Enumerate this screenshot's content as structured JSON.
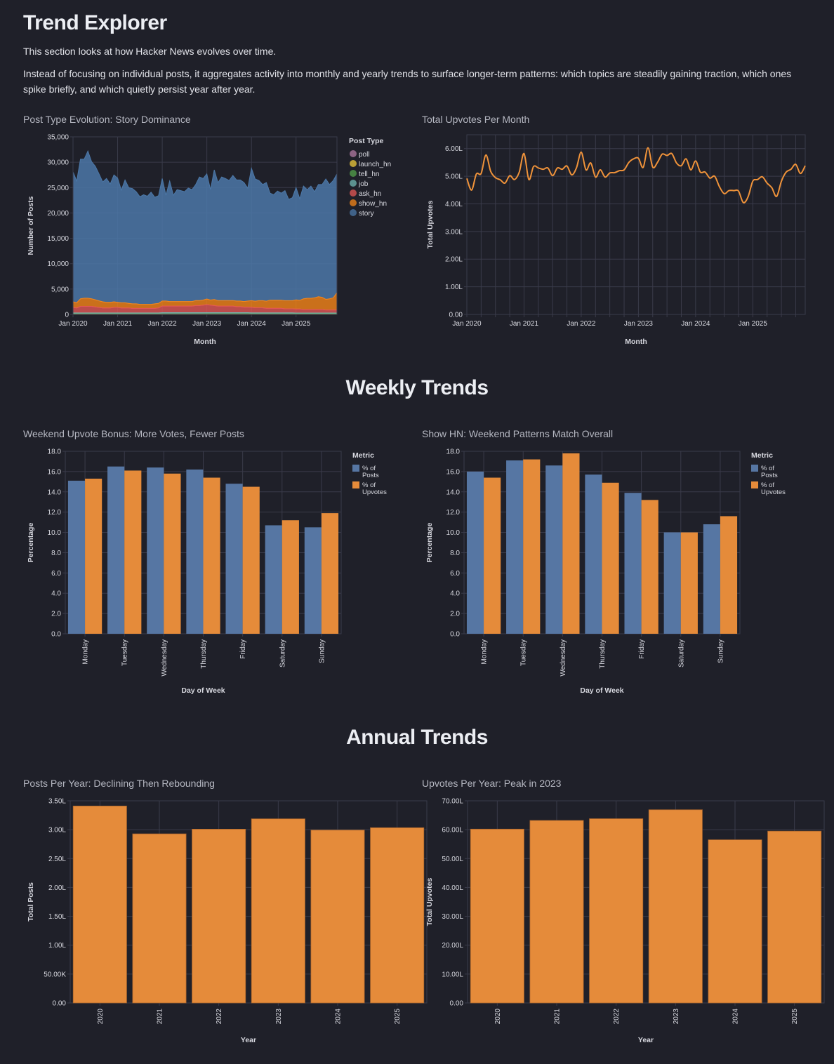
{
  "page": {
    "title": "Trend Explorer",
    "intro_1": "This section looks at how Hacker News evolves over time.",
    "intro_2": "Instead of focusing on individual posts, it aggregates activity into monthly and yearly trends to surface longer-term patterns: which topics are steadily gaining traction, which ones spike briefly, and which quietly persist year after year.",
    "section_weekly": "Weekly Trends",
    "section_annual": "Annual Trends"
  },
  "colors": {
    "background": "#1f2029",
    "grid": "#3a3b4a",
    "blue": "#5676a3",
    "orange": "#e58b3a",
    "line_orange": "#f0933a"
  },
  "chart_data": [
    {
      "id": "post_type_evolution",
      "type": "area",
      "stacked": true,
      "title": "Post Type Evolution: Story Dominance",
      "xlabel": "Month",
      "ylabel": "Number of Posts",
      "ylim": [
        0,
        35000
      ],
      "yticks": [
        "0",
        "5,000",
        "10,000",
        "15,000",
        "20,000",
        "25,000",
        "30,000",
        "35,000"
      ],
      "ytick_values": [
        0,
        5000,
        10000,
        15000,
        20000,
        25000,
        30000,
        35000
      ],
      "xticks": [
        "Jan 2020",
        "Jan 2021",
        "Jan 2022",
        "Jan 2023",
        "Jan 2024",
        "Jan 2025"
      ],
      "x_start": "2020-01",
      "months": 72,
      "legend_title": "Post Type",
      "legend_position": "right",
      "grid": true,
      "totals": [
        28100,
        26300,
        30600,
        30600,
        32200,
        30100,
        29200,
        27700,
        26100,
        26800,
        25700,
        27500,
        26900,
        24500,
        26500,
        25000,
        24800,
        24200,
        23200,
        23600,
        23300,
        24100,
        23100,
        23400,
        26800,
        23500,
        26300,
        23500,
        24600,
        24400,
        24200,
        24900,
        24600,
        25600,
        27100,
        26800,
        27700,
        24600,
        28500,
        26000,
        27100,
        26800,
        26400,
        27400,
        26500,
        26500,
        26000,
        24900,
        28800,
        26700,
        26400,
        25600,
        26000,
        23900,
        23600,
        24300,
        23900,
        24400,
        22700,
        23000,
        25000,
        22800,
        25300,
        24600,
        25300,
        24200,
        25600,
        25600,
        26700,
        25600,
        26400,
        27700
      ],
      "series": [
        {
          "name": "poll",
          "color": "#b279a2",
          "values": [
            10,
            10,
            10,
            10,
            10,
            10,
            10,
            10,
            10,
            10,
            10,
            10,
            10,
            10,
            10,
            10,
            10,
            10,
            10,
            10,
            10,
            10,
            10,
            10,
            10,
            10,
            10,
            10,
            10,
            10,
            10,
            10,
            10,
            10,
            10,
            10,
            10,
            10,
            10,
            10,
            10,
            10,
            10,
            10,
            10,
            10,
            10,
            10,
            10,
            10,
            10,
            10,
            10,
            10,
            10,
            10,
            10,
            10,
            10,
            10,
            10,
            10,
            10,
            10,
            10,
            10,
            10,
            10,
            10,
            10,
            10,
            10
          ]
        },
        {
          "name": "launch_hn",
          "color": "#eeca3b",
          "values": [
            20,
            20,
            20,
            20,
            20,
            20,
            20,
            20,
            20,
            20,
            20,
            20,
            20,
            20,
            20,
            20,
            20,
            20,
            20,
            20,
            20,
            20,
            20,
            20,
            20,
            20,
            20,
            20,
            20,
            20,
            20,
            20,
            20,
            20,
            20,
            20,
            20,
            20,
            20,
            20,
            20,
            20,
            20,
            20,
            20,
            20,
            20,
            20,
            20,
            20,
            20,
            20,
            20,
            20,
            20,
            20,
            20,
            20,
            20,
            20,
            20,
            20,
            20,
            20,
            20,
            20,
            20,
            20,
            20,
            20,
            20,
            20
          ]
        },
        {
          "name": "tell_hn",
          "color": "#54a24b",
          "values": [
            60,
            60,
            60,
            60,
            60,
            60,
            60,
            60,
            60,
            60,
            60,
            60,
            60,
            60,
            60,
            60,
            60,
            60,
            60,
            60,
            60,
            60,
            60,
            60,
            80,
            80,
            80,
            80,
            80,
            80,
            80,
            80,
            80,
            80,
            80,
            80,
            90,
            90,
            90,
            90,
            90,
            90,
            90,
            90,
            90,
            90,
            90,
            90,
            80,
            80,
            80,
            80,
            80,
            80,
            80,
            80,
            80,
            80,
            80,
            80,
            70,
            70,
            70,
            70,
            70,
            70,
            70,
            70,
            70,
            70,
            70,
            70
          ]
        },
        {
          "name": "job",
          "color": "#72b7b2",
          "values": [
            200,
            200,
            200,
            200,
            200,
            200,
            200,
            200,
            200,
            200,
            200,
            200,
            200,
            200,
            200,
            200,
            200,
            200,
            200,
            200,
            200,
            200,
            200,
            200,
            230,
            230,
            230,
            230,
            230,
            230,
            230,
            230,
            230,
            230,
            230,
            230,
            220,
            220,
            220,
            220,
            220,
            220,
            220,
            220,
            220,
            220,
            220,
            220,
            200,
            200,
            200,
            200,
            200,
            200,
            200,
            200,
            200,
            200,
            200,
            200,
            180,
            180,
            180,
            180,
            180,
            180,
            180,
            180,
            180,
            180,
            180,
            180
          ]
        },
        {
          "name": "ask_hn",
          "color": "#e45756",
          "values": [
            1100,
            1000,
            1300,
            1300,
            1300,
            1300,
            1200,
            1100,
            1000,
            1000,
            1000,
            1100,
            1100,
            1000,
            1000,
            1000,
            900,
            900,
            900,
            900,
            900,
            900,
            900,
            1000,
            1300,
            1300,
            1300,
            1300,
            1300,
            1300,
            1300,
            1300,
            1300,
            1400,
            1400,
            1500,
            1600,
            1500,
            1400,
            1300,
            1300,
            1300,
            1300,
            1300,
            1200,
            1200,
            1100,
            1100,
            1100,
            1000,
            1000,
            1000,
            900,
            900,
            900,
            900,
            900,
            800,
            800,
            800,
            800,
            800,
            700,
            700,
            700,
            700,
            700,
            700,
            600,
            600,
            600,
            600
          ]
        },
        {
          "name": "show_hn",
          "color": "#f58518",
          "values": [
            1100,
            1000,
            1500,
            1600,
            1600,
            1500,
            1400,
            1300,
            1200,
            1100,
            1100,
            1100,
            1000,
            1000,
            1000,
            900,
            900,
            900,
            800,
            800,
            800,
            800,
            900,
            900,
            1000,
            1000,
            900,
            900,
            900,
            900,
            900,
            900,
            900,
            1000,
            1000,
            1000,
            1100,
            1000,
            1200,
            1100,
            1100,
            1100,
            1100,
            1100,
            1100,
            1100,
            1100,
            1200,
            1300,
            1300,
            1400,
            1400,
            1400,
            1600,
            1600,
            1600,
            1600,
            1600,
            1600,
            1600,
            1800,
            1700,
            2100,
            2200,
            2200,
            2300,
            2500,
            2400,
            2100,
            2200,
            2400,
            3400
          ]
        },
        {
          "name": "story",
          "color": "#4c78a8",
          "derived_from": "totals minus other series"
        }
      ]
    },
    {
      "id": "upvotes_per_month",
      "type": "line",
      "title": "Total Upvotes Per Month",
      "xlabel": "Month",
      "ylabel": "Total Upvotes",
      "ylim": [
        0,
        650000
      ],
      "yticks": [
        "0.00",
        "1.00L",
        "2.00L",
        "3.00L",
        "4.00L",
        "5.00L",
        "6.00L"
      ],
      "ytick_values": [
        0,
        100000,
        200000,
        300000,
        400000,
        500000,
        600000
      ],
      "xticks": [
        "Jan 2020",
        "Jan 2021",
        "Jan 2022",
        "Jan 2023",
        "Jan 2024",
        "Jan 2025"
      ],
      "x_start": "2020-01",
      "grid": true,
      "unit_note": "L = lakh (100,000)",
      "values": [
        492000,
        450000,
        508000,
        510000,
        577000,
        518000,
        495000,
        487000,
        475000,
        502000,
        488000,
        515000,
        582000,
        488000,
        535000,
        530000,
        525000,
        530000,
        502000,
        530000,
        525000,
        537000,
        505000,
        530000,
        587000,
        523000,
        548000,
        497000,
        523000,
        497000,
        512000,
        513000,
        520000,
        523000,
        550000,
        563000,
        565000,
        532000,
        603000,
        533000,
        550000,
        580000,
        575000,
        582000,
        548000,
        538000,
        563000,
        523000,
        555000,
        515000,
        515000,
        493000,
        500000,
        462000,
        437000,
        448000,
        448000,
        446000,
        405000,
        425000,
        482000,
        488000,
        498000,
        475000,
        458000,
        427000,
        482000,
        515000,
        525000,
        543000,
        510000,
        538000
      ],
      "color": "#f0933a"
    },
    {
      "id": "weekend_upvote_bonus",
      "type": "bar",
      "grouped": true,
      "title": "Weekend Upvote Bonus: More Votes, Fewer Posts",
      "xlabel": "Day of Week",
      "ylabel": "Percentage",
      "ylim": [
        0,
        18
      ],
      "yticks": [
        "0.0",
        "2.0",
        "4.0",
        "6.0",
        "8.0",
        "10.0",
        "12.0",
        "14.0",
        "16.0",
        "18.0"
      ],
      "ytick_values": [
        0,
        2,
        4,
        6,
        8,
        10,
        12,
        14,
        16,
        18
      ],
      "categories": [
        "Monday",
        "Tuesday",
        "Wednesday",
        "Thursday",
        "Friday",
        "Saturday",
        "Sunday"
      ],
      "legend_title": "Metric",
      "legend_position": "right",
      "grid": true,
      "series": [
        {
          "name": "% of Posts",
          "legend_lines": [
            "% of",
            "Posts"
          ],
          "color": "#5676a3",
          "values": [
            15.1,
            16.5,
            16.4,
            16.2,
            14.8,
            10.7,
            10.5
          ]
        },
        {
          "name": "% of Upvotes",
          "legend_lines": [
            "% of",
            "Upvotes"
          ],
          "color": "#e58b3a",
          "values": [
            15.3,
            16.1,
            15.8,
            15.4,
            14.5,
            11.2,
            11.9
          ]
        }
      ]
    },
    {
      "id": "show_hn_weekend",
      "type": "bar",
      "grouped": true,
      "title": "Show HN: Weekend Patterns Match Overall",
      "xlabel": "Day of Week",
      "ylabel": "Percentage",
      "ylim": [
        0,
        18
      ],
      "yticks": [
        "0.0",
        "2.0",
        "4.0",
        "6.0",
        "8.0",
        "10.0",
        "12.0",
        "14.0",
        "16.0",
        "18.0"
      ],
      "ytick_values": [
        0,
        2,
        4,
        6,
        8,
        10,
        12,
        14,
        16,
        18
      ],
      "categories": [
        "Monday",
        "Tuesday",
        "Wednesday",
        "Thursday",
        "Friday",
        "Saturday",
        "Sunday"
      ],
      "legend_title": "Metric",
      "legend_position": "right",
      "grid": true,
      "series": [
        {
          "name": "% of Posts",
          "legend_lines": [
            "% of",
            "Posts"
          ],
          "color": "#5676a3",
          "values": [
            16.0,
            17.1,
            16.6,
            15.7,
            13.9,
            10.0,
            10.8
          ]
        },
        {
          "name": "% of Upvotes",
          "legend_lines": [
            "% of",
            "Upvotes"
          ],
          "color": "#e58b3a",
          "values": [
            15.4,
            17.2,
            17.8,
            14.9,
            13.2,
            10.0,
            11.6
          ]
        }
      ]
    },
    {
      "id": "posts_per_year",
      "type": "bar",
      "title": "Posts Per Year: Declining Then Rebounding",
      "xlabel": "Year",
      "ylabel": "Total Posts",
      "ylim": [
        0,
        350000
      ],
      "yticks": [
        "0.00",
        "50.00K",
        "1.00L",
        "1.50L",
        "2.00L",
        "2.50L",
        "3.00L",
        "3.50L"
      ],
      "ytick_values": [
        0,
        50000,
        100000,
        150000,
        200000,
        250000,
        300000,
        350000
      ],
      "categories": [
        "2020",
        "2021",
        "2022",
        "2023",
        "2024",
        "2025"
      ],
      "values": [
        341000,
        292800,
        300900,
        318800,
        299300,
        303400
      ],
      "color": "#e58b3a",
      "grid": true
    },
    {
      "id": "upvotes_per_year",
      "type": "bar",
      "title": "Upvotes Per Year: Peak in 2023",
      "xlabel": "Year",
      "ylabel": "Total Upvotes",
      "ylim": [
        0,
        7000000
      ],
      "yticks": [
        "0.00",
        "10.00L",
        "20.00L",
        "30.00L",
        "40.00L",
        "50.00L",
        "60.00L",
        "70.00L"
      ],
      "ytick_values": [
        0,
        1000000,
        2000000,
        3000000,
        4000000,
        5000000,
        6000000,
        7000000
      ],
      "categories": [
        "2020",
        "2021",
        "2022",
        "2023",
        "2024",
        "2025"
      ],
      "values": [
        6020000,
        6320000,
        6380000,
        6690000,
        5650000,
        5950000
      ],
      "color": "#e58b3a",
      "grid": true
    }
  ]
}
